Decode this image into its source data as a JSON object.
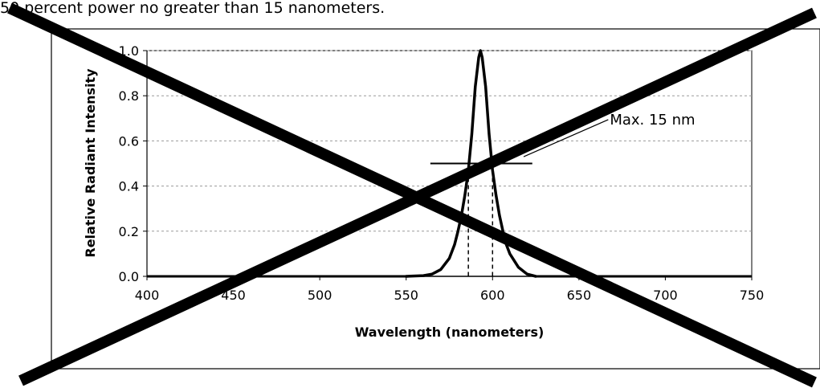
{
  "page": {
    "top_text": "50 percent power no greater than 15 nanometers."
  },
  "chart_data": {
    "type": "line",
    "title": "",
    "xlabel": "Wavelength (nanometers)",
    "ylabel": "Relative Radiant Intensity",
    "xlim": [
      400,
      750
    ],
    "ylim": [
      0,
      1.0
    ],
    "x_ticks": [
      400,
      450,
      500,
      550,
      600,
      650,
      700,
      750
    ],
    "y_ticks": [
      0.0,
      0.2,
      0.4,
      0.6,
      0.8,
      1.0
    ],
    "x_tick_labels": [
      "400",
      "450",
      "500",
      "550",
      "600",
      "650",
      "700",
      "750"
    ],
    "y_tick_labels": [
      "0.0",
      "0.2",
      "0.4",
      "0.6",
      "0.8",
      "1.0"
    ],
    "grid": {
      "horizontal": true,
      "style": "dashed"
    },
    "series": [
      {
        "peak_wavelength": 593,
        "fwhm_nm": 14,
        "x": [
          550,
          560,
          565,
          570,
          575,
          578,
          580,
          582,
          584,
          586,
          588,
          590,
          592,
          593,
          594,
          596,
          598,
          600,
          602,
          604,
          606,
          608,
          610,
          615,
          620,
          625
        ],
        "y": [
          0.0,
          0.003,
          0.01,
          0.03,
          0.08,
          0.14,
          0.2,
          0.27,
          0.36,
          0.47,
          0.63,
          0.84,
          0.97,
          1.0,
          0.97,
          0.84,
          0.63,
          0.47,
          0.36,
          0.27,
          0.2,
          0.14,
          0.1,
          0.04,
          0.01,
          0.0
        ]
      }
    ],
    "half_max_line": {
      "y": 0.5,
      "x_start": 564,
      "x_end": 623
    },
    "fwhm_markers": [
      586,
      600
    ],
    "annotation": {
      "text": "Max. 15 nm",
      "pointer_from": [
        618,
        0.53
      ],
      "text_anchor": [
        640,
        0.68
      ]
    },
    "crossed_out": true
  }
}
